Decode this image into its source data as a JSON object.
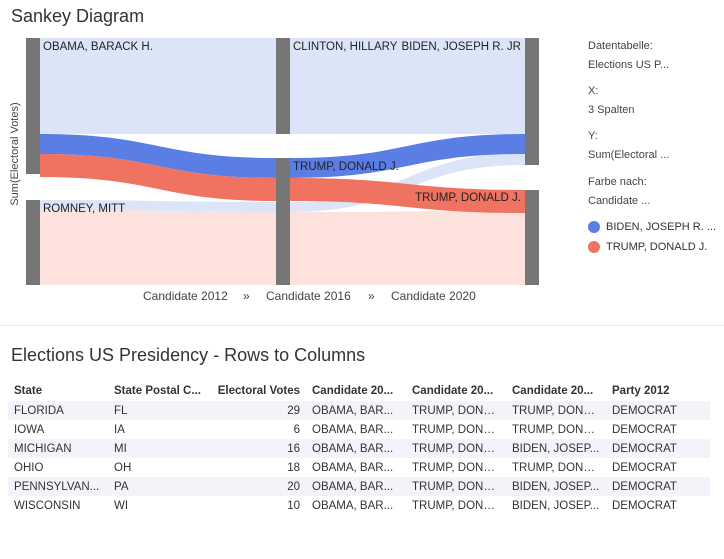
{
  "chart_title": "Sankey Diagram",
  "chart_data": {
    "type": "sankey",
    "title": "Sankey Diagram",
    "ylabel": "Sum(Electoral Votes)",
    "stages": [
      "Candidate 2012",
      "Candidate 2016",
      "Candidate 2020"
    ],
    "stage_separator": "»",
    "nodes": [
      {
        "id": "obama",
        "label": "OBAMA, BARACK H.",
        "stage": 0,
        "value": 99
      },
      {
        "id": "romney",
        "label": "ROMNEY, MITT",
        "stage": 0,
        "value": 0
      },
      {
        "id": "clinton",
        "label": "CLINTON, HILLARY",
        "stage": 1,
        "value": 0
      },
      {
        "id": "trump16",
        "label": "TRUMP, DONALD J.",
        "stage": 1,
        "value": 99
      },
      {
        "id": "biden",
        "label": "BIDEN, JOSEPH R. JR",
        "stage": 2,
        "value": 46
      },
      {
        "id": "trump20",
        "label": "TRUMP, DONALD J.",
        "stage": 2,
        "value": 53
      }
    ],
    "flows": [
      {
        "from": "obama",
        "mid": "trump16",
        "to": "biden",
        "value": 46,
        "color": "#5b7ee5"
      },
      {
        "from": "obama",
        "mid": "trump16",
        "to": "trump20",
        "value": 53,
        "color": "#f07260"
      }
    ],
    "placeholder_flows": [
      {
        "from": "obama",
        "mid": "clinton",
        "to": "biden",
        "color": "#dce4f8"
      },
      {
        "from": "romney",
        "mid": "trump16",
        "to": "biden",
        "color": "#dce4f8"
      },
      {
        "from": "romney",
        "mid": "trump16",
        "to": "trump20",
        "color": "#fde1dc"
      }
    ],
    "colors": {
      "biden": "#5b7ee5",
      "trump": "#f07260",
      "node": "#767676"
    }
  },
  "side_panel": {
    "data_table_label": "Datentabelle:",
    "data_table_value": "Elections US P...",
    "x_label": "X:",
    "x_value": "3 Spalten",
    "y_label": "Y:",
    "y_value": "Sum(Electoral ...",
    "color_label": "Farbe nach:",
    "color_value": "Candidate ..."
  },
  "legend": [
    {
      "label": "BIDEN, JOSEPH R. ...",
      "color": "#5b7ee5"
    },
    {
      "label": "TRUMP, DONALD J.",
      "color": "#f07260"
    }
  ],
  "table": {
    "title": "Elections US Presidency - Rows to Columns",
    "columns": [
      "State",
      "State Postal C...",
      "Electoral Votes",
      "Candidate 20...",
      "Candidate 20...",
      "Candidate 20...",
      "Party 2012"
    ],
    "rows": [
      [
        "FLORIDA",
        "FL",
        "29",
        "OBAMA, BAR...",
        "TRUMP, DONA...",
        "TRUMP, DONA...",
        "DEMOCRAT"
      ],
      [
        "IOWA",
        "IA",
        "6",
        "OBAMA, BAR...",
        "TRUMP, DONA...",
        "TRUMP, DONA...",
        "DEMOCRAT"
      ],
      [
        "MICHIGAN",
        "MI",
        "16",
        "OBAMA, BAR...",
        "TRUMP, DONA...",
        "BIDEN, JOSEP...",
        "DEMOCRAT"
      ],
      [
        "OHIO",
        "OH",
        "18",
        "OBAMA, BAR...",
        "TRUMP, DONA...",
        "TRUMP, DONA...",
        "DEMOCRAT"
      ],
      [
        "PENNSYLVAN...",
        "PA",
        "20",
        "OBAMA, BAR...",
        "TRUMP, DONA...",
        "BIDEN, JOSEP...",
        "DEMOCRAT"
      ],
      [
        "WISCONSIN",
        "WI",
        "10",
        "OBAMA, BAR...",
        "TRUMP, DONA...",
        "BIDEN, JOSEP...",
        "DEMOCRAT"
      ]
    ]
  }
}
